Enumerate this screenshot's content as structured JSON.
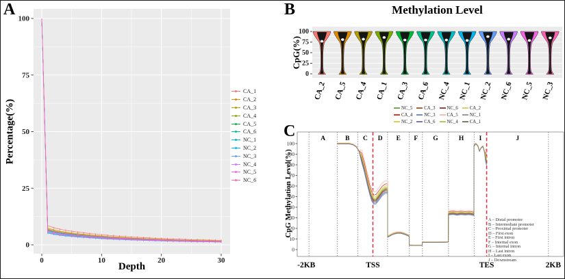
{
  "panels": {
    "a": {
      "label": "A",
      "xlabel": "Depth",
      "ylabel": "Percentage(%)"
    },
    "b": {
      "label": "B",
      "title": "Methylation Level",
      "ylabel": "CpG(%)"
    },
    "c": {
      "label": "C",
      "ylabel": "CpG Methylation Level(%)"
    }
  },
  "chart_data": [
    {
      "panel": "A",
      "type": "line",
      "xlabel": "Depth",
      "ylabel": "Percentage(%)",
      "xlim": [
        0,
        30
      ],
      "ylim": [
        0,
        100
      ],
      "x_ticks": [
        0,
        10,
        20,
        30
      ],
      "y_ticks": [
        0,
        25,
        50,
        75,
        100
      ],
      "x": [
        0,
        1,
        2,
        3,
        4,
        5,
        6,
        7,
        8,
        9,
        10,
        11,
        12,
        13,
        14,
        15,
        16,
        17,
        18,
        19,
        20,
        21,
        22,
        23,
        24,
        25,
        26,
        27,
        28,
        29,
        30
      ],
      "base_values": [
        100,
        6.6,
        5.9,
        5.4,
        5.0,
        4.7,
        4.4,
        4.15,
        3.9,
        3.7,
        3.5,
        3.3,
        3.15,
        3.0,
        2.85,
        2.7,
        2.6,
        2.5,
        2.4,
        2.3,
        2.2,
        2.1,
        2.0,
        1.95,
        1.9,
        1.8,
        1.75,
        1.7,
        1.65,
        1.6,
        1.55
      ],
      "note": "All 12 curves start at 100% at depth 0 then decay; series value = base_values x scale for depth >= 1",
      "series": [
        {
          "name": "CA_1",
          "color": "#F8766D",
          "scale": 1.28
        },
        {
          "name": "CA_2",
          "color": "#DE8C00",
          "scale": 1.12
        },
        {
          "name": "CA_3",
          "color": "#B79F00",
          "scale": 1.06
        },
        {
          "name": "CA_4",
          "color": "#7CAE00",
          "scale": 1.02
        },
        {
          "name": "CA_5",
          "color": "#00BA38",
          "scale": 0.99
        },
        {
          "name": "CA_6",
          "color": "#00C08B",
          "scale": 0.96
        },
        {
          "name": "NC_1",
          "color": "#00BFC4",
          "scale": 0.93
        },
        {
          "name": "NC_2",
          "color": "#00B4F0",
          "scale": 0.82
        },
        {
          "name": "NC_3",
          "color": "#619CFF",
          "scale": 0.78
        },
        {
          "name": "NC_4",
          "color": "#C77CFF",
          "scale": 0.9
        },
        {
          "name": "NC_5",
          "color": "#F564E3",
          "scale": 1.0
        },
        {
          "name": "NC_6",
          "color": "#FF64B0",
          "scale": 0.86
        }
      ]
    },
    {
      "panel": "B",
      "type": "violin",
      "title": "Methylation Level",
      "ylabel": "CpG(%)",
      "ylim": [
        0,
        100
      ],
      "y_ticks": [
        0,
        25,
        50,
        75,
        100
      ],
      "categories": [
        "CA_2",
        "CA_5",
        "CA_4",
        "CA_1",
        "CA_3",
        "CA_6",
        "NC_4",
        "NC_1",
        "NC_2",
        "NC_6",
        "NC_5",
        "NC_3"
      ],
      "violins": [
        {
          "name": "CA_2",
          "color": "#F8766D",
          "median": 77,
          "range": [
            0,
            100
          ]
        },
        {
          "name": "CA_5",
          "color": "#DE8C00",
          "median": 81,
          "range": [
            0,
            100
          ]
        },
        {
          "name": "CA_4",
          "color": "#B79F00",
          "median": 82,
          "range": [
            0,
            100
          ]
        },
        {
          "name": "CA_1",
          "color": "#7CAE00",
          "median": 86,
          "range": [
            0,
            100
          ]
        },
        {
          "name": "CA_3",
          "color": "#00BA38",
          "median": 80,
          "range": [
            0,
            100
          ]
        },
        {
          "name": "CA_6",
          "color": "#00C08B",
          "median": 80,
          "range": [
            0,
            100
          ]
        },
        {
          "name": "NC_4",
          "color": "#00BFC4",
          "median": 80,
          "range": [
            0,
            100
          ]
        },
        {
          "name": "NC_1",
          "color": "#00B4F0",
          "median": 79,
          "range": [
            0,
            100
          ]
        },
        {
          "name": "NC_2",
          "color": "#619CFF",
          "median": 88,
          "range": [
            0,
            100
          ]
        },
        {
          "name": "NC_6",
          "color": "#C77CFF",
          "median": 82,
          "range": [
            0,
            100
          ]
        },
        {
          "name": "NC_5",
          "color": "#F564E3",
          "median": 79,
          "range": [
            0,
            100
          ]
        },
        {
          "name": "NC_3",
          "color": "#FF64B0",
          "median": 85,
          "range": [
            0,
            100
          ]
        }
      ]
    },
    {
      "panel": "C",
      "type": "line",
      "ylabel": "CpG Methylation Level(%)",
      "ylim": [
        0,
        100
      ],
      "y_ticks": [
        0,
        10,
        20,
        30,
        40,
        50,
        60,
        70,
        80,
        90,
        100
      ],
      "x_axis_labels": [
        {
          "text": "-2KB",
          "f": 0.034
        },
        {
          "text": "TSS",
          "f": 0.284
        },
        {
          "text": "TES",
          "f": 0.711
        },
        {
          "text": "2KB",
          "f": 0.961
        }
      ],
      "tss_f": 0.284,
      "tes_f": 0.711,
      "regions": [
        {
          "key": "A",
          "name": "Distal promoter",
          "span": [
            0.044,
            0.15
          ]
        },
        {
          "key": "B",
          "name": "Intermediate promoter",
          "span": [
            0.15,
            0.227
          ]
        },
        {
          "key": "C",
          "name": "Proximal promoter",
          "span": [
            0.227,
            0.284
          ]
        },
        {
          "key": "D",
          "name": "First exon",
          "span": [
            0.284,
            0.339
          ]
        },
        {
          "key": "E",
          "name": "First intron",
          "span": [
            0.339,
            0.421
          ]
        },
        {
          "key": "F",
          "name": "Internal exon",
          "span": [
            0.421,
            0.47
          ]
        },
        {
          "key": "G",
          "name": "Internal intron",
          "span": [
            0.47,
            0.568
          ]
        },
        {
          "key": "H",
          "name": "Last intron",
          "span": [
            0.568,
            0.664
          ]
        },
        {
          "key": "I",
          "name": "Last exon",
          "span": [
            0.664,
            0.711
          ]
        },
        {
          "key": "J",
          "name": "Downstream",
          "span": [
            0.711,
            0.943
          ]
        }
      ],
      "profile": [
        [
          0.15,
          100
        ],
        [
          0.195,
          100
        ],
        [
          0.21,
          99
        ],
        [
          0.222,
          97
        ],
        [
          0.232,
          93
        ],
        [
          0.242,
          86
        ],
        [
          0.252,
          77
        ],
        [
          0.262,
          66
        ],
        [
          0.272,
          56
        ],
        [
          0.28,
          49.5
        ],
        [
          0.288,
          46.5
        ],
        [
          0.296,
          47
        ],
        [
          0.308,
          51
        ],
        [
          0.32,
          55
        ],
        [
          0.331,
          57
        ],
        [
          0.339,
          57
        ],
        [
          0.3395,
          12
        ],
        [
          0.35,
          13.5
        ],
        [
          0.362,
          15
        ],
        [
          0.375,
          15.8
        ],
        [
          0.388,
          15.8
        ],
        [
          0.4,
          15
        ],
        [
          0.412,
          13.8
        ],
        [
          0.42,
          12.8
        ],
        [
          0.4205,
          4.2
        ],
        [
          0.435,
          4.0
        ],
        [
          0.455,
          4.0
        ],
        [
          0.469,
          4.1
        ],
        [
          0.4695,
          7.0
        ],
        [
          0.5,
          7.0
        ],
        [
          0.53,
          7.0
        ],
        [
          0.555,
          7.1
        ],
        [
          0.567,
          7.2
        ],
        [
          0.5675,
          34
        ],
        [
          0.585,
          34.5
        ],
        [
          0.6,
          33.8
        ],
        [
          0.615,
          34.4
        ],
        [
          0.63,
          34.0
        ],
        [
          0.645,
          34.3
        ],
        [
          0.658,
          33.8
        ],
        [
          0.663,
          33.5
        ],
        [
          0.6635,
          98
        ],
        [
          0.67,
          100
        ],
        [
          0.678,
          98
        ],
        [
          0.684,
          93
        ],
        [
          0.69,
          96
        ],
        [
          0.697,
          97.5
        ],
        [
          0.703,
          92
        ],
        [
          0.707,
          87
        ],
        [
          0.711,
          83
        ]
      ],
      "note": "12 nearly overlapping sample curves; series value = profile value + offset x spread-weight",
      "series": [
        {
          "name": "NC_5",
          "color": "#6faf4e",
          "offset": 0.7
        },
        {
          "name": "CA_3",
          "color": "#a8642e",
          "offset": 0
        },
        {
          "name": "NC_6",
          "color": "#9e4444",
          "offset": -0.7
        },
        {
          "name": "CA_2",
          "color": "#d6d06e",
          "offset": 3.2
        },
        {
          "name": "CA_4",
          "color": "#d93b2b",
          "offset": 5
        },
        {
          "name": "NC_3",
          "color": "#6b8fc9",
          "offset": -4
        },
        {
          "name": "CA_5",
          "color": "#f2bdb4",
          "offset": 8
        },
        {
          "name": "NC_1",
          "color": "#9a9a9a",
          "offset": -2.2
        },
        {
          "name": "NC_2",
          "color": "#e3cf4e",
          "offset": 2.2
        },
        {
          "name": "CA_6",
          "color": "#8372b8",
          "offset": -3
        },
        {
          "name": "NC_4",
          "color": "#b9c45e",
          "offset": 1.4
        },
        {
          "name": "CA_1",
          "color": "#7d7d68",
          "offset": -1.4
        }
      ],
      "legend_rows": [
        [
          "NC_5",
          "CA_3",
          "NC_6",
          "CA_2"
        ],
        [
          "CA_4",
          "NC_3",
          "CA_5",
          "NC_1"
        ],
        [
          "NC_2",
          "CA_6",
          "NC_4",
          "CA_1"
        ]
      ]
    }
  ]
}
